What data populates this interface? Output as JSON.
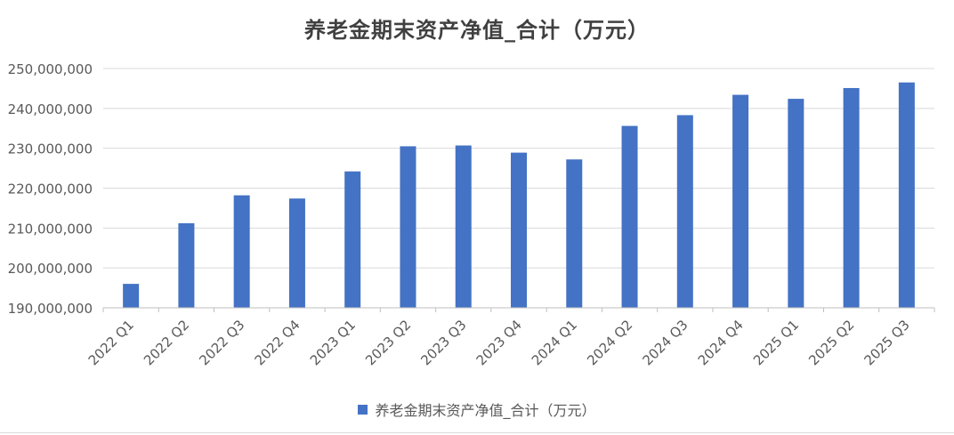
{
  "chart_data": {
    "type": "bar",
    "title": "养老金期末资产净值_合计（万元）",
    "categories": [
      "2022 Q1",
      "2022 Q2",
      "2022 Q3",
      "2022 Q4",
      "2023 Q1",
      "2023 Q2",
      "2023 Q3",
      "2023 Q4",
      "2024 Q1",
      "2024 Q2",
      "2024 Q3",
      "2024 Q4",
      "2025 Q1",
      "2025 Q2",
      "2025 Q3"
    ],
    "series": [
      {
        "name": "养老金期末资产净值_合计（万元）",
        "color": "#4472C4",
        "values": [
          196000000,
          211200000,
          218200000,
          217400000,
          224200000,
          230500000,
          230700000,
          228900000,
          227200000,
          235600000,
          238300000,
          243400000,
          242400000,
          245100000,
          246500000
        ]
      }
    ],
    "yticks": [
      "190,000,000",
      "200,000,000",
      "210,000,000",
      "220,000,000",
      "230,000,000",
      "240,000,000",
      "250,000,000"
    ],
    "ylim": [
      190000000,
      250000000
    ],
    "xlabel": "",
    "ylabel": "",
    "grid": true,
    "legend_position": "bottom"
  }
}
